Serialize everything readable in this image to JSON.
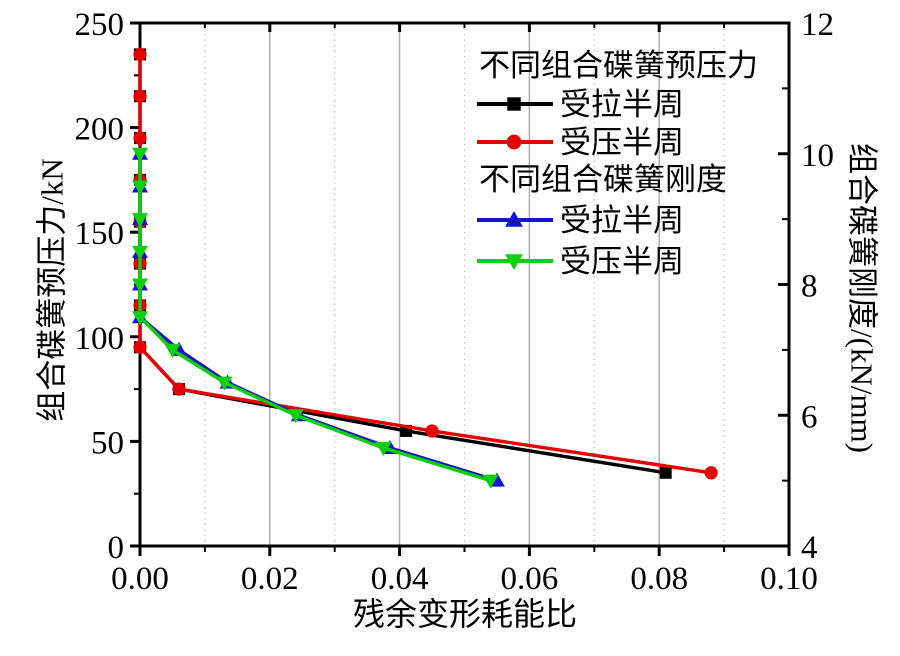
{
  "chart_data": {
    "type": "line",
    "xlabel": "残余变形耗能比",
    "ylabel_left": "组合碟簧预压力/kN",
    "ylabel_right": "组合碟簧刚度/(kN/mm)",
    "xlim": [
      0,
      0.1
    ],
    "x_major_ticks": [
      0,
      0.02,
      0.04,
      0.06,
      0.08,
      0.1
    ],
    "x_tick_labels": [
      "0.00",
      "0.02",
      "0.04",
      "0.06",
      "0.08",
      "0.10"
    ],
    "x_minor_ticks": [
      0.01,
      0.03,
      0.05,
      0.07,
      0.09
    ],
    "ylim_left": [
      0,
      250
    ],
    "y_left_major_ticks": [
      0,
      50,
      100,
      150,
      200,
      250
    ],
    "y_left_tick_labels": [
      "0",
      "50",
      "100",
      "150",
      "200",
      "250"
    ],
    "y_left_minor_ticks": [
      25,
      75,
      125,
      175,
      225
    ],
    "ylim_right": [
      4,
      12
    ],
    "y_right_major_ticks": [
      4,
      6,
      8,
      10,
      12
    ],
    "y_right_tick_labels": [
      "4",
      "6",
      "8",
      "10",
      "12"
    ],
    "y_right_minor_ticks": [
      5,
      7,
      9,
      11
    ],
    "grid": {
      "vertical_major": true,
      "vertical_minor": "dotted",
      "horizontal": false,
      "major_color": "#b0b0b0",
      "minor_color": "#c3c3c3"
    },
    "legend": {
      "position": "top-right-inside",
      "groups": [
        {
          "header": "不同组合碟簧预压力",
          "items": [
            {
              "label": "受拉半周",
              "series": "preload_tension"
            },
            {
              "label": "受压半周",
              "series": "preload_compression"
            }
          ]
        },
        {
          "header": "不同组合碟簧刚度",
          "items": [
            {
              "label": "受拉半周",
              "series": "stiffness_tension"
            },
            {
              "label": "受压半周",
              "series": "stiffness_compression"
            }
          ]
        }
      ]
    },
    "series": [
      {
        "id": "preload_tension",
        "group": "不同组合碟簧预压力",
        "label": "受拉半周",
        "axis": "left",
        "color": "#000000",
        "marker": "square",
        "points": [
          [
            0,
            235
          ],
          [
            0,
            215
          ],
          [
            0,
            195
          ],
          [
            0,
            175
          ],
          [
            0,
            155
          ],
          [
            0,
            135
          ],
          [
            0,
            115
          ],
          [
            0,
            95
          ],
          [
            0.006,
            75
          ],
          [
            0.041,
            55
          ],
          [
            0.081,
            35
          ]
        ]
      },
      {
        "id": "preload_compression",
        "group": "不同组合碟簧预压力",
        "label": "受压半周",
        "axis": "left",
        "color": "#e60000",
        "marker": "circle",
        "points": [
          [
            0,
            235
          ],
          [
            0,
            215
          ],
          [
            0,
            195
          ],
          [
            0,
            175
          ],
          [
            0,
            155
          ],
          [
            0,
            135
          ],
          [
            0,
            115
          ],
          [
            0,
            95
          ],
          [
            0.006,
            75
          ],
          [
            0.045,
            55
          ],
          [
            0.088,
            35
          ]
        ]
      },
      {
        "id": "stiffness_tension",
        "group": "不同组合碟簧刚度",
        "label": "受拉半周",
        "axis": "right",
        "color": "#1414cd",
        "marker": "triangle-up",
        "points": [
          [
            0,
            10
          ],
          [
            0,
            9.5
          ],
          [
            0,
            9
          ],
          [
            0,
            8.5
          ],
          [
            0,
            8
          ],
          [
            0,
            7.5
          ],
          [
            0.006,
            7
          ],
          [
            0.0135,
            6.5
          ],
          [
            0.0245,
            6
          ],
          [
            0.0385,
            5.5
          ],
          [
            0.055,
            5
          ]
        ]
      },
      {
        "id": "stiffness_compression",
        "group": "不同组合碟簧刚度",
        "label": "受压半周",
        "axis": "right",
        "color": "#0ed00e",
        "marker": "triangle-down",
        "points": [
          [
            0,
            10
          ],
          [
            0,
            9.5
          ],
          [
            0,
            9
          ],
          [
            0,
            8.5
          ],
          [
            0,
            8
          ],
          [
            0,
            7.5
          ],
          [
            0.005,
            7
          ],
          [
            0.013,
            6.5
          ],
          [
            0.024,
            6
          ],
          [
            0.0375,
            5.5
          ],
          [
            0.054,
            5
          ]
        ]
      }
    ]
  }
}
